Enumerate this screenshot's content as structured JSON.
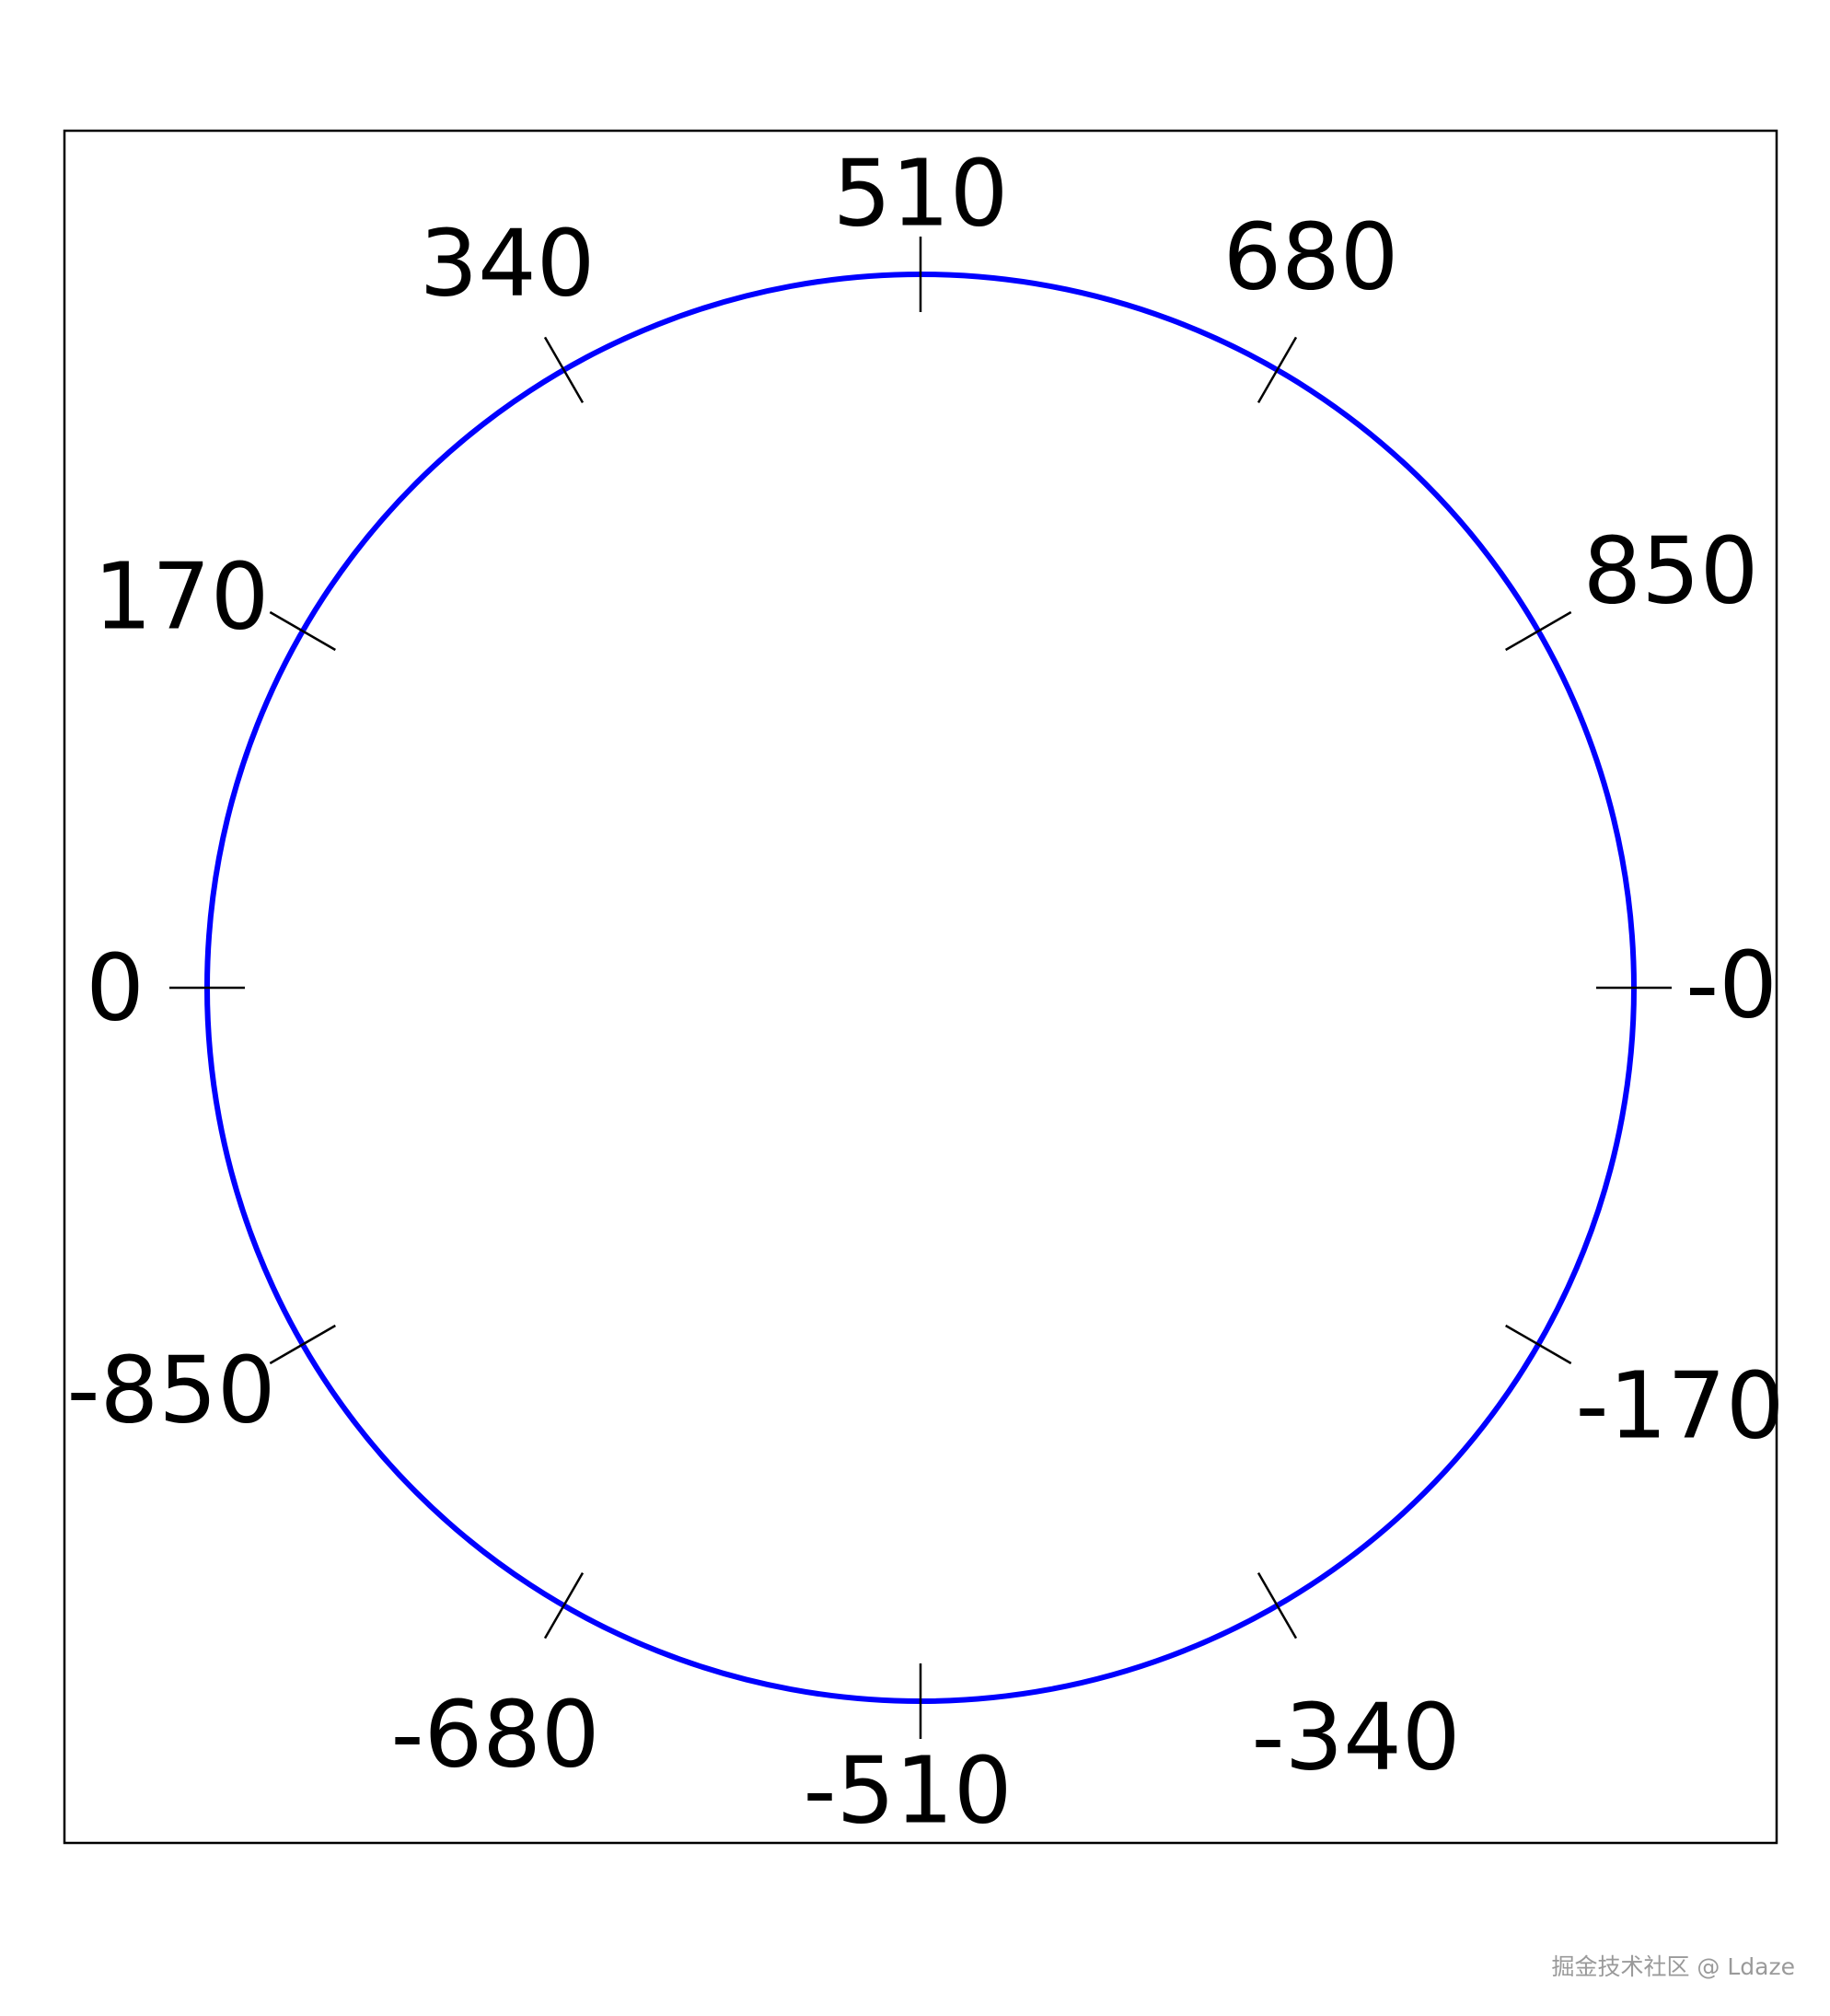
{
  "chart_data": {
    "type": "line",
    "subtype": "circular-dial",
    "title": "",
    "tick_labels": [
      "0",
      "170",
      "340",
      "510",
      "680",
      "850",
      "-0",
      "-170",
      "-340",
      "-510",
      "-680",
      "-850"
    ],
    "tick_angles_deg": [
      180,
      150,
      120,
      90,
      60,
      30,
      0,
      -30,
      -60,
      -90,
      -120,
      -150
    ],
    "series": [
      {
        "shape": "circle",
        "color": "#0000ff"
      }
    ],
    "grid": false,
    "frame": true,
    "tick_color": "#000000"
  },
  "watermark": "掘金技术社区 @ Ldaze"
}
